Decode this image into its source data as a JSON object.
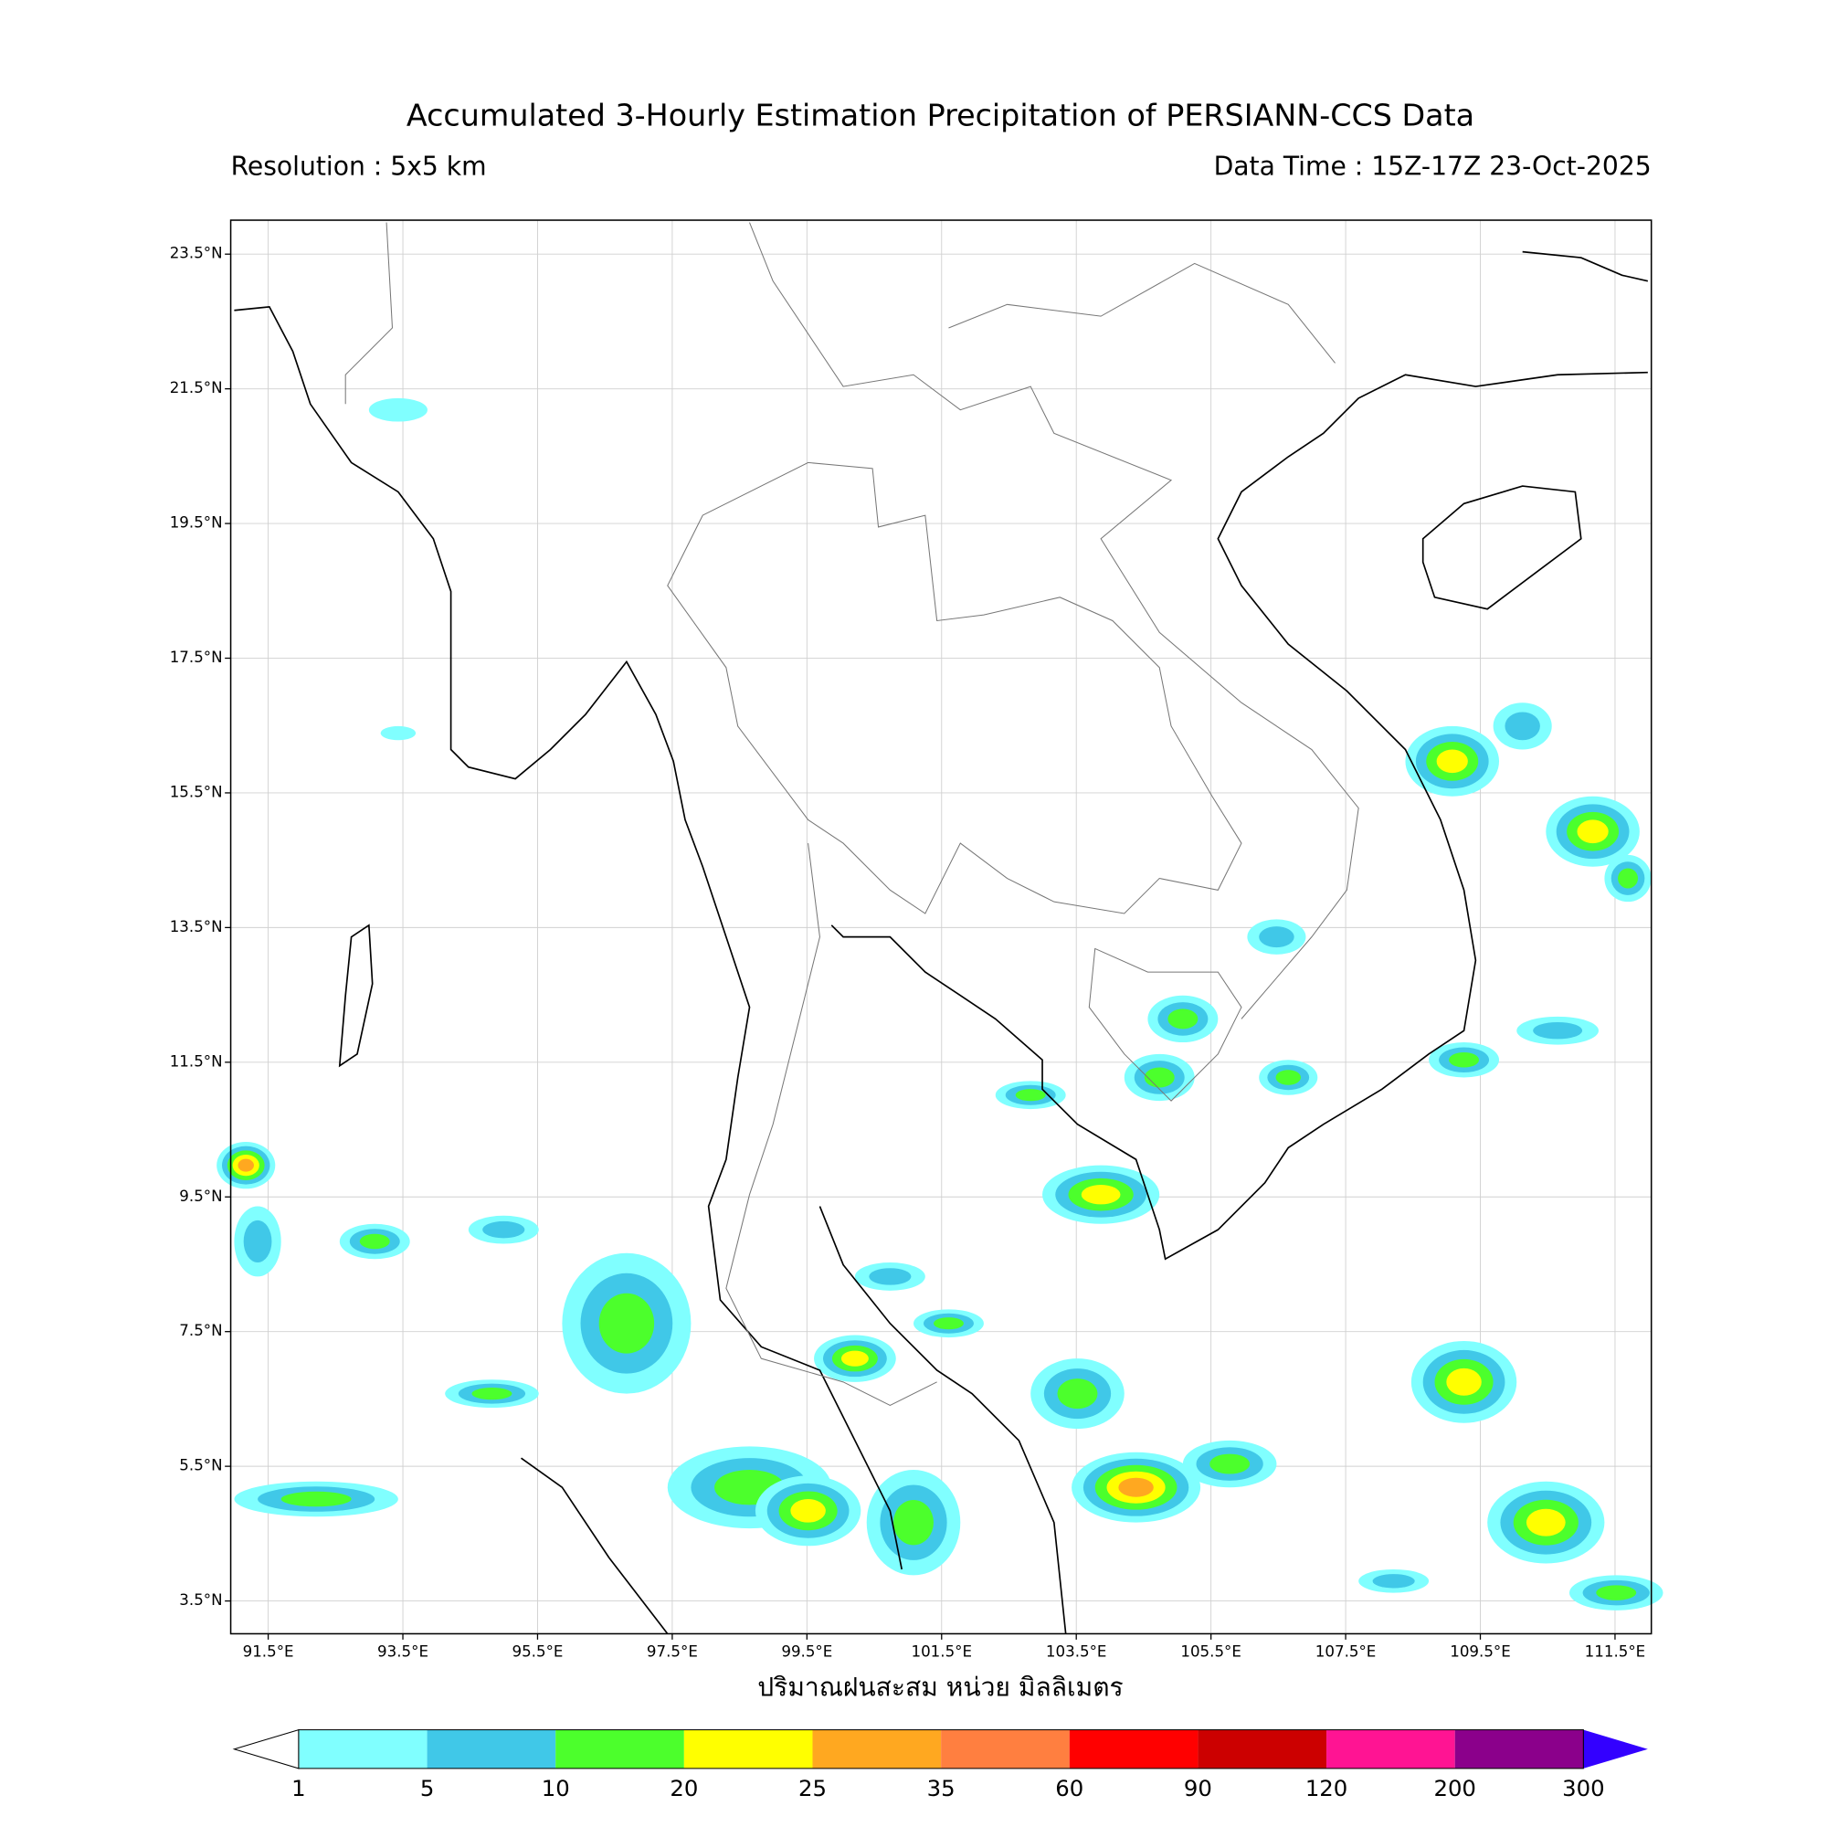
{
  "header": {
    "title": "Accumulated 3-Hourly Estimation Precipitation of PERSIANN-CCS Data",
    "resolution": "Resolution : 5x5 km",
    "data_time": "Data Time : 15Z-17Z 23-Oct-2025"
  },
  "map": {
    "lat_labels": [
      "23.5°N",
      "21.5°N",
      "19.5°N",
      "17.5°N",
      "15.5°N",
      "13.5°N",
      "11.5°N",
      "9.5°N",
      "7.5°N",
      "5.5°N",
      "3.5°N"
    ],
    "lon_labels": [
      "91.5°E",
      "93.5°E",
      "95.5°E",
      "97.5°E",
      "99.5°E",
      "101.5°E",
      "103.5°E",
      "105.5°E",
      "107.5°E",
      "109.5°E",
      "111.5°E"
    ],
    "xlabel": "ปริมาณฝนสะสม หน่วย มิลลิเมตร"
  },
  "colorbar": {
    "labels": [
      "1",
      "5",
      "10",
      "20",
      "25",
      "35",
      "60",
      "90",
      "120",
      "200",
      "300"
    ],
    "colors": [
      "#80ffff",
      "#40c8e8",
      "#4cff2c",
      "#ffff00",
      "#ffa820",
      "#ff7f40",
      "#ff0000",
      "#cc0000",
      "#ff1493",
      "#8b008b"
    ],
    "over_color": "#3300ff"
  }
}
